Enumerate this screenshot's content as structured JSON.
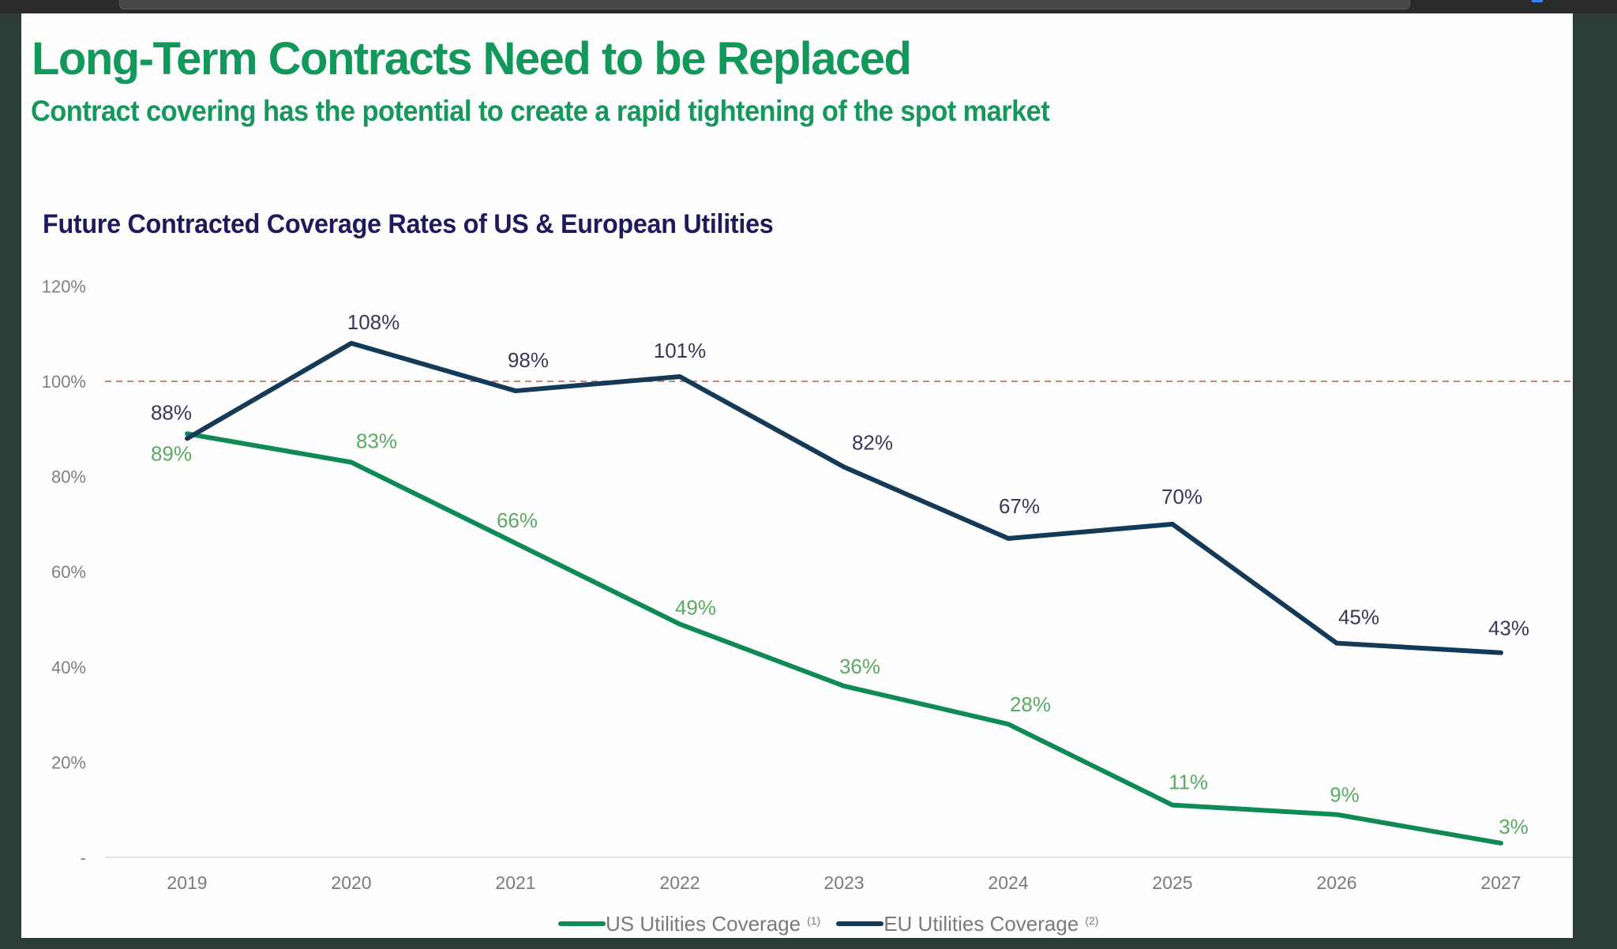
{
  "slide": {
    "title": "Long-Term Contracts Need to be Replaced",
    "subtitle": "Contract covering has the potential to create a rapid tightening of the spot market"
  },
  "colors": {
    "title_green": "#12985a",
    "chart_title_navy": "#1f1a5c",
    "us_line": "#0f8a55",
    "eu_line": "#143a58",
    "us_label": "#5aaa62",
    "eu_label": "#3c3559",
    "reference_line": "#c9847a"
  },
  "chart_data": {
    "type": "line",
    "title": "Future Contracted Coverage Rates of US & European Utilities",
    "xlabel": "",
    "ylabel": "",
    "categories": [
      "2019",
      "2020",
      "2021",
      "2022",
      "2023",
      "2024",
      "2025",
      "2026",
      "2027"
    ],
    "series": [
      {
        "name": "US Utilities Coverage",
        "footnote": "(1)",
        "values": [
          89,
          83,
          66,
          49,
          36,
          28,
          11,
          9,
          3
        ],
        "labels": [
          "89%",
          "83%",
          "66%",
          "49%",
          "36%",
          "28%",
          "11%",
          "9%",
          "3%"
        ]
      },
      {
        "name": "EU Utilities Coverage",
        "footnote": "(2)",
        "values": [
          88,
          108,
          98,
          101,
          82,
          67,
          70,
          45,
          43
        ],
        "labels": [
          "88%",
          "108%",
          "98%",
          "101%",
          "82%",
          "67%",
          "70%",
          "45%",
          "43%"
        ]
      }
    ],
    "ylim": [
      0,
      120
    ],
    "yticks": [
      0,
      20,
      40,
      60,
      80,
      100,
      120
    ],
    "ytick_labels": [
      "-",
      "20%",
      "40%",
      "60%",
      "80%",
      "100%",
      "120%"
    ],
    "reference_line": {
      "value": 100,
      "style": "dashed"
    },
    "grid": false,
    "legend": "bottom-center"
  }
}
